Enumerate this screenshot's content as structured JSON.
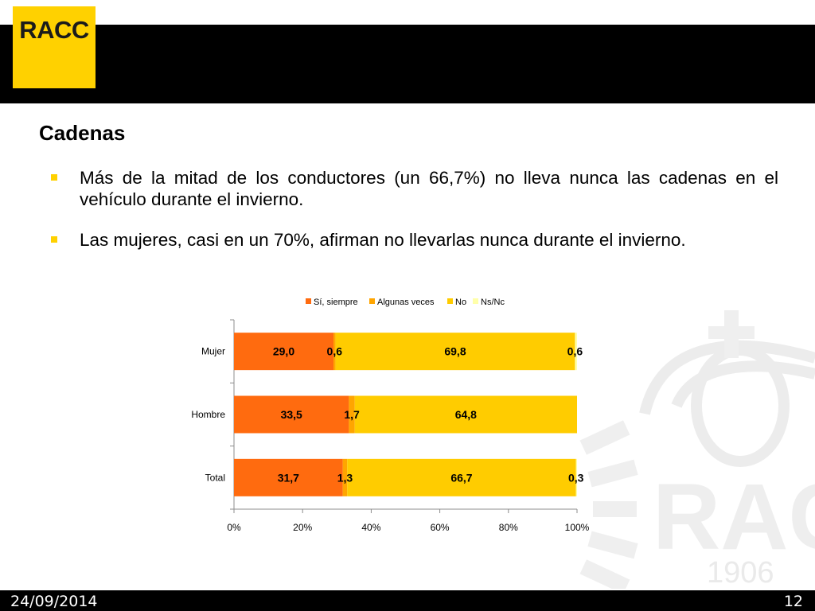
{
  "header": {
    "logo_text": "RACC"
  },
  "watermark": {
    "text": "RACC",
    "year": "1906"
  },
  "slide": {
    "title": "Cadenas",
    "bullets": [
      "Más de la mitad de los conductores (un 66,7%) no lleva nunca las cadenas en el vehículo durante el invierno.",
      "Las mujeres, casi en un 70%, afirman no llevarlas nunca durante el invierno."
    ]
  },
  "chart_data": {
    "type": "bar",
    "orientation": "horizontal",
    "stacked": true,
    "percent_axis": true,
    "categories": [
      "Mujer",
      "Hombre",
      "Total"
    ],
    "series": [
      {
        "name": "Sí, siempre",
        "color": "#ff6b0f",
        "values": [
          29.0,
          33.5,
          31.7
        ],
        "labels": [
          "29,0",
          "33,5",
          "31,7"
        ]
      },
      {
        "name": "Algunas veces",
        "color": "#ffa500",
        "values": [
          0.6,
          1.7,
          1.3
        ],
        "labels": [
          "0,6",
          "1,7",
          "1,3"
        ]
      },
      {
        "name": "No",
        "color": "#ffcc00",
        "values": [
          69.8,
          64.8,
          66.7
        ],
        "labels": [
          "69,8",
          "64,8",
          "66,7"
        ]
      },
      {
        "name": "Ns/Nc",
        "color": "#ffffaa",
        "values": [
          0.6,
          0.0,
          0.3
        ],
        "labels": [
          "0,6",
          "",
          "0,3"
        ]
      }
    ],
    "xlim": [
      0,
      100
    ],
    "xticks": [
      "0%",
      "20%",
      "40%",
      "60%",
      "80%",
      "100%"
    ],
    "legend_position": "top"
  },
  "footer": {
    "date": "24/09/2014",
    "page": "12"
  }
}
